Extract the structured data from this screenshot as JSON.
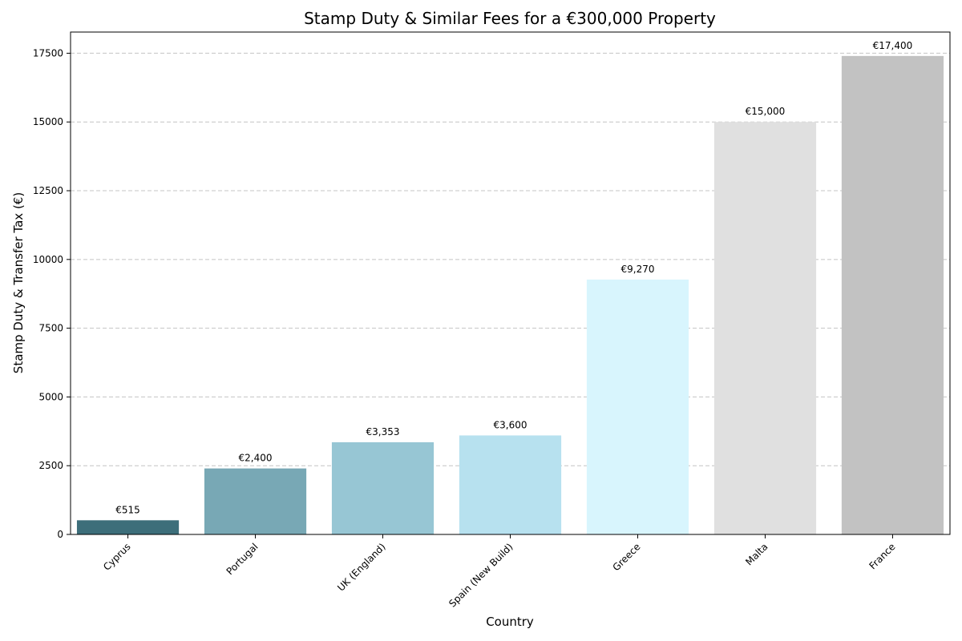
{
  "chart_data": {
    "type": "bar",
    "title": "Stamp Duty & Similar Fees for a €300,000 Property",
    "xlabel": "Country",
    "ylabel": "Stamp Duty & Transfer Tax (€)",
    "categories": [
      "Cyprus",
      "Portugal",
      "UK (England)",
      "Spain (New Build)",
      "Greece",
      "Malta",
      "France"
    ],
    "values": [
      515,
      2400,
      3353,
      3600,
      9270,
      15000,
      17400
    ],
    "data_labels": [
      "€515",
      "€2,400",
      "€3,353",
      "€3,600",
      "€9,270",
      "€15,000",
      "€17,400"
    ],
    "colors": [
      "#3d6e7a",
      "#78a8b5",
      "#97c6d4",
      "#b7e1ef",
      "#d8f5fd",
      "#e0e0e0",
      "#c2c2c2"
    ],
    "yticks": [
      0,
      2500,
      5000,
      7500,
      10000,
      12500,
      15000,
      17500
    ],
    "ylim": [
      0,
      18270
    ],
    "grid": true,
    "grid_axis": "y"
  }
}
